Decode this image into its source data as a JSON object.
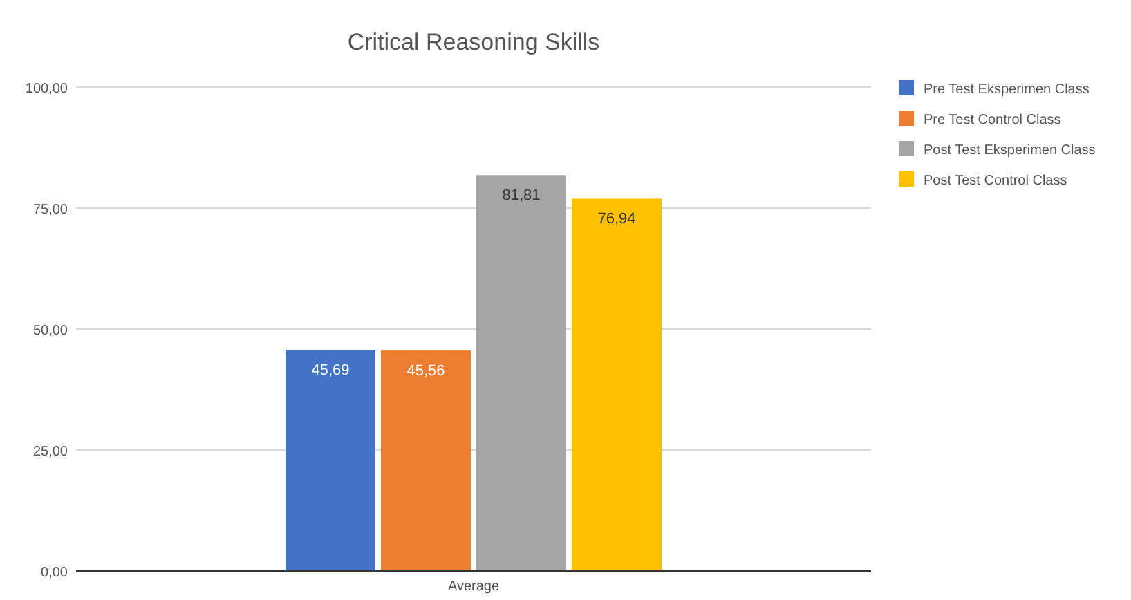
{
  "chart_data": {
    "type": "bar",
    "title": "Critical Reasoning Skills",
    "categories": [
      "Average"
    ],
    "series": [
      {
        "name": "Pre Test Eksperimen Class",
        "color": "#4472c4",
        "values": [
          45.69
        ],
        "value_labels": [
          "45,69"
        ]
      },
      {
        "name": "Pre Test Control Class",
        "color": "#ed7d31",
        "values": [
          45.56
        ],
        "value_labels": [
          "45,56"
        ]
      },
      {
        "name": "Post Test Eksperimen Class",
        "color": "#a5a5a5",
        "values": [
          81.81
        ],
        "value_labels": [
          "81,81"
        ]
      },
      {
        "name": "Post Test Control Class",
        "color": "#ffc000",
        "values": [
          76.94
        ],
        "value_labels": [
          "76,94"
        ]
      }
    ],
    "ylim": [
      0,
      100
    ],
    "yticks": [
      {
        "value": 0,
        "label": "0,00"
      },
      {
        "value": 25,
        "label": "25,00"
      },
      {
        "value": 50,
        "label": "50,00"
      },
      {
        "value": 75,
        "label": "75,00"
      },
      {
        "value": 100,
        "label": "100,00"
      }
    ],
    "grid": "y",
    "legend": "top right"
  }
}
